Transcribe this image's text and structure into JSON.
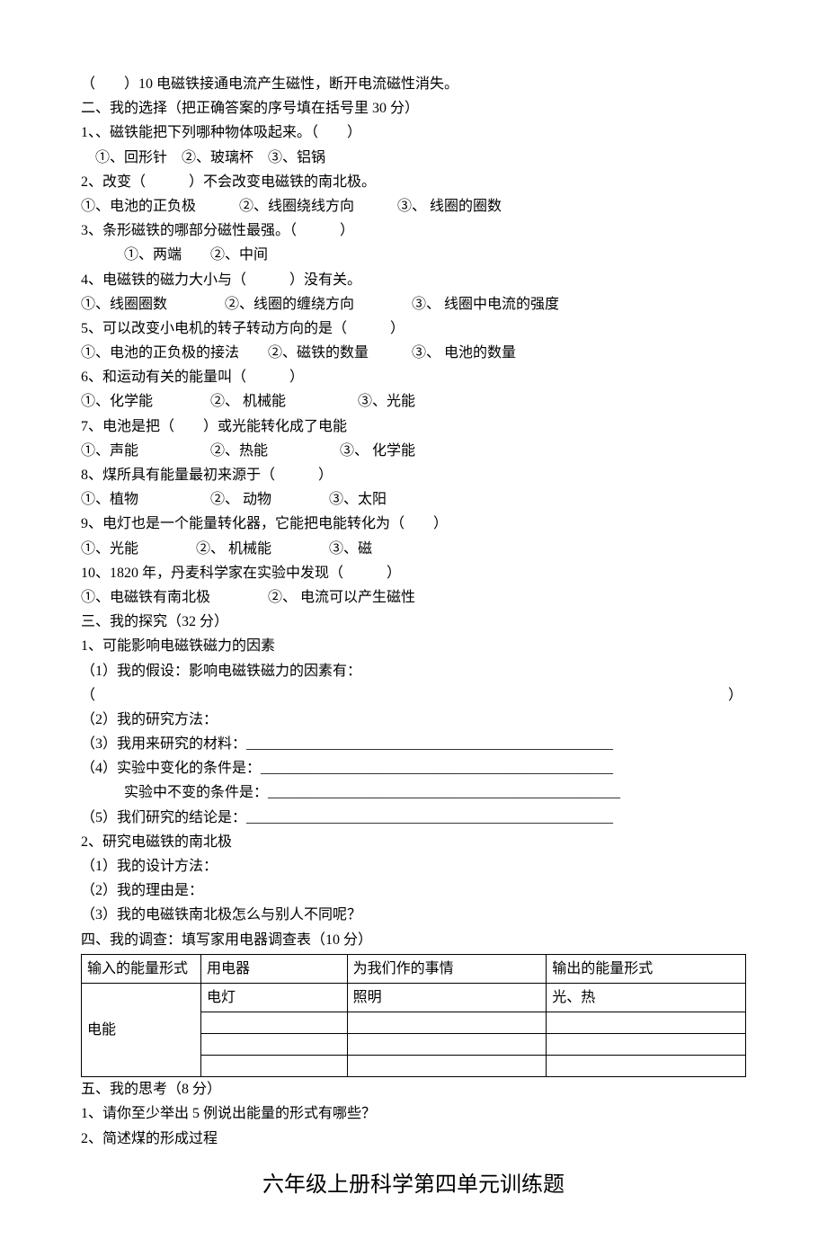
{
  "q10": "（　　）10 电磁铁接通电流产生磁性，断开电流磁性消失。",
  "section2_title": "二、我的选择（把正确答案的序号填在括号里 30 分）",
  "s2_q1": "1、、磁铁能把下列哪种物体吸起来。（　　）",
  "s2_q1_opts": "　①、回形针　②、玻璃杯　③、铝锅",
  "s2_q2": "2、改变（　　　）不会改变电磁铁的南北极。",
  "s2_q2_opts": "①、电池的正负极　　　②、线圈绕线方向　　　③、 线圈的圈数",
  "s2_q3": "3、条形磁铁的哪部分磁性最强。（　　　）",
  "s2_q3_opts": "　　　①、两端　　②、中间",
  "s2_q4": "4、电磁铁的磁力大小与（　　　）没有关。",
  "s2_q4_opts": "①、线圈圈数　　　　②、线圈的缠绕方向　　　　③、 线圈中电流的强度",
  "s2_q5": "5、可以改变小电机的转子转动方向的是（　　　）",
  "s2_q5_opts": "①、电池的正负极的接法　　②、磁铁的数量　　　③、 电池的数量",
  "s2_q6": "6、和运动有关的能量叫（　　　）",
  "s2_q6_opts": "①、化学能　　　　②、 机械能　　　　　③、光能",
  "s2_q7": "7、电池是把（　　）或光能转化成了电能",
  "s2_q7_opts": "①、声能　　　　　②、热能　　　　　③、 化学能",
  "s2_q8": "8、煤所具有能量最初来源于（　　　）",
  "s2_q8_opts": "①、植物　　　　　②、 动物　　　　③、太阳",
  "s2_q9": "9、电灯也是一个能量转化器，它能把电能转化为（　　）",
  "s2_q9_opts": "①、光能　　　　②、 机械能　　　　③、磁",
  "s2_q10": "10、1820 年，丹麦科学家在实验中发现（　　　）",
  "s2_q10_opts": "①、电磁铁有南北极　　　　②、 电流可以产生磁性",
  "section3_title": "三、我的探究（32 分）",
  "s3_q1": "1、可能影响电磁铁磁力的因素",
  "s3_q1_1": "（1）我的假设：影响电磁铁磁力的因素有：",
  "s3_q1_1b": "（　　　　　　　　　　　　　　　　　　　　　　　　　　　　　　　　　　　　　　　　　　　　）",
  "s3_q1_2": "（2）我的研究方法：",
  "s3_q1_3": "（3）我用来研究的材料：___________________________________________________",
  "s3_q1_4a": "（4）实验中变化的条件是：_________________________________________________",
  "s3_q1_4b": "　　　实验中不变的条件是：_________________________________________________",
  "s3_q1_5": "（5）我们研究的结论是：___________________________________________________",
  "s3_q2": "2、研究电磁铁的南北极",
  "s3_q2_1": "（1）我的设计方法：",
  "s3_q2_2": "（2）我的理由是：",
  "s3_q2_3": "（3）我的电磁铁南北极怎么与别人不同呢？",
  "section4_title": "四、我的调查：填写家用电器调查表（10 分）",
  "table": {
    "headers": [
      "输入的能量形式",
      "用电器",
      "为我们作的事情",
      "输出的能量形式"
    ],
    "rowspan_cell": "电能",
    "row1": [
      "电灯",
      "照明",
      "光、热"
    ],
    "row2": [
      "",
      "",
      ""
    ],
    "row3": [
      "",
      "",
      ""
    ],
    "row4": [
      "",
      "",
      ""
    ]
  },
  "section5_title": "五、我的思考（8 分）",
  "s5_q1": "1、请你至少举出 5 例说出能量的形式有哪些？",
  "s5_q2": "2、简述煤的形成过程",
  "page_title": "六年级上册科学第四单元训练题"
}
